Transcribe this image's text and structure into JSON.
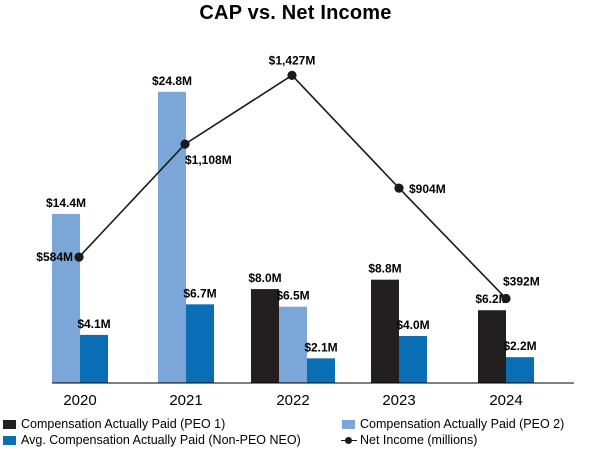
{
  "chart_data": {
    "type": "bar",
    "title": "CAP vs. Net Income",
    "categories": [
      "2020",
      "2021",
      "2022",
      "2023",
      "2024"
    ],
    "series": [
      {
        "name": "Compensation Actually Paid (PEO 1)",
        "color": "#231f20",
        "values": [
          null,
          null,
          8.0,
          8.8,
          6.2
        ],
        "labels": [
          "",
          "",
          "$8.0M",
          "$8.8M",
          "$6.2M"
        ]
      },
      {
        "name": "Compensation Actually Paid (PEO 2)",
        "color": "#7ba7d8",
        "values": [
          14.4,
          24.8,
          6.5,
          null,
          null
        ],
        "labels": [
          "$14.4M",
          "$24.8M",
          "$6.5M",
          "",
          ""
        ]
      },
      {
        "name": "Avg. Compensation Actually Paid (Non-PEO NEO)",
        "color": "#0a6eb4",
        "values": [
          4.1,
          6.7,
          2.1,
          4.0,
          2.2
        ],
        "labels": [
          "$4.1M",
          "$6.7M",
          "$2.1M",
          "$4.0M",
          "$2.2M"
        ]
      }
    ],
    "line": {
      "name": "Net Income (millions)",
      "color": "#1a1a1a",
      "values": [
        584,
        1108,
        1427,
        904,
        392
      ],
      "labels": [
        "$584M",
        "$1,108M",
        "$1,427M",
        "$904M",
        "$392M"
      ]
    },
    "ylim_bars": [
      0,
      30
    ],
    "ylim_line": [
      0,
      1500
    ],
    "grid": false,
    "legend_position": "bottom"
  }
}
